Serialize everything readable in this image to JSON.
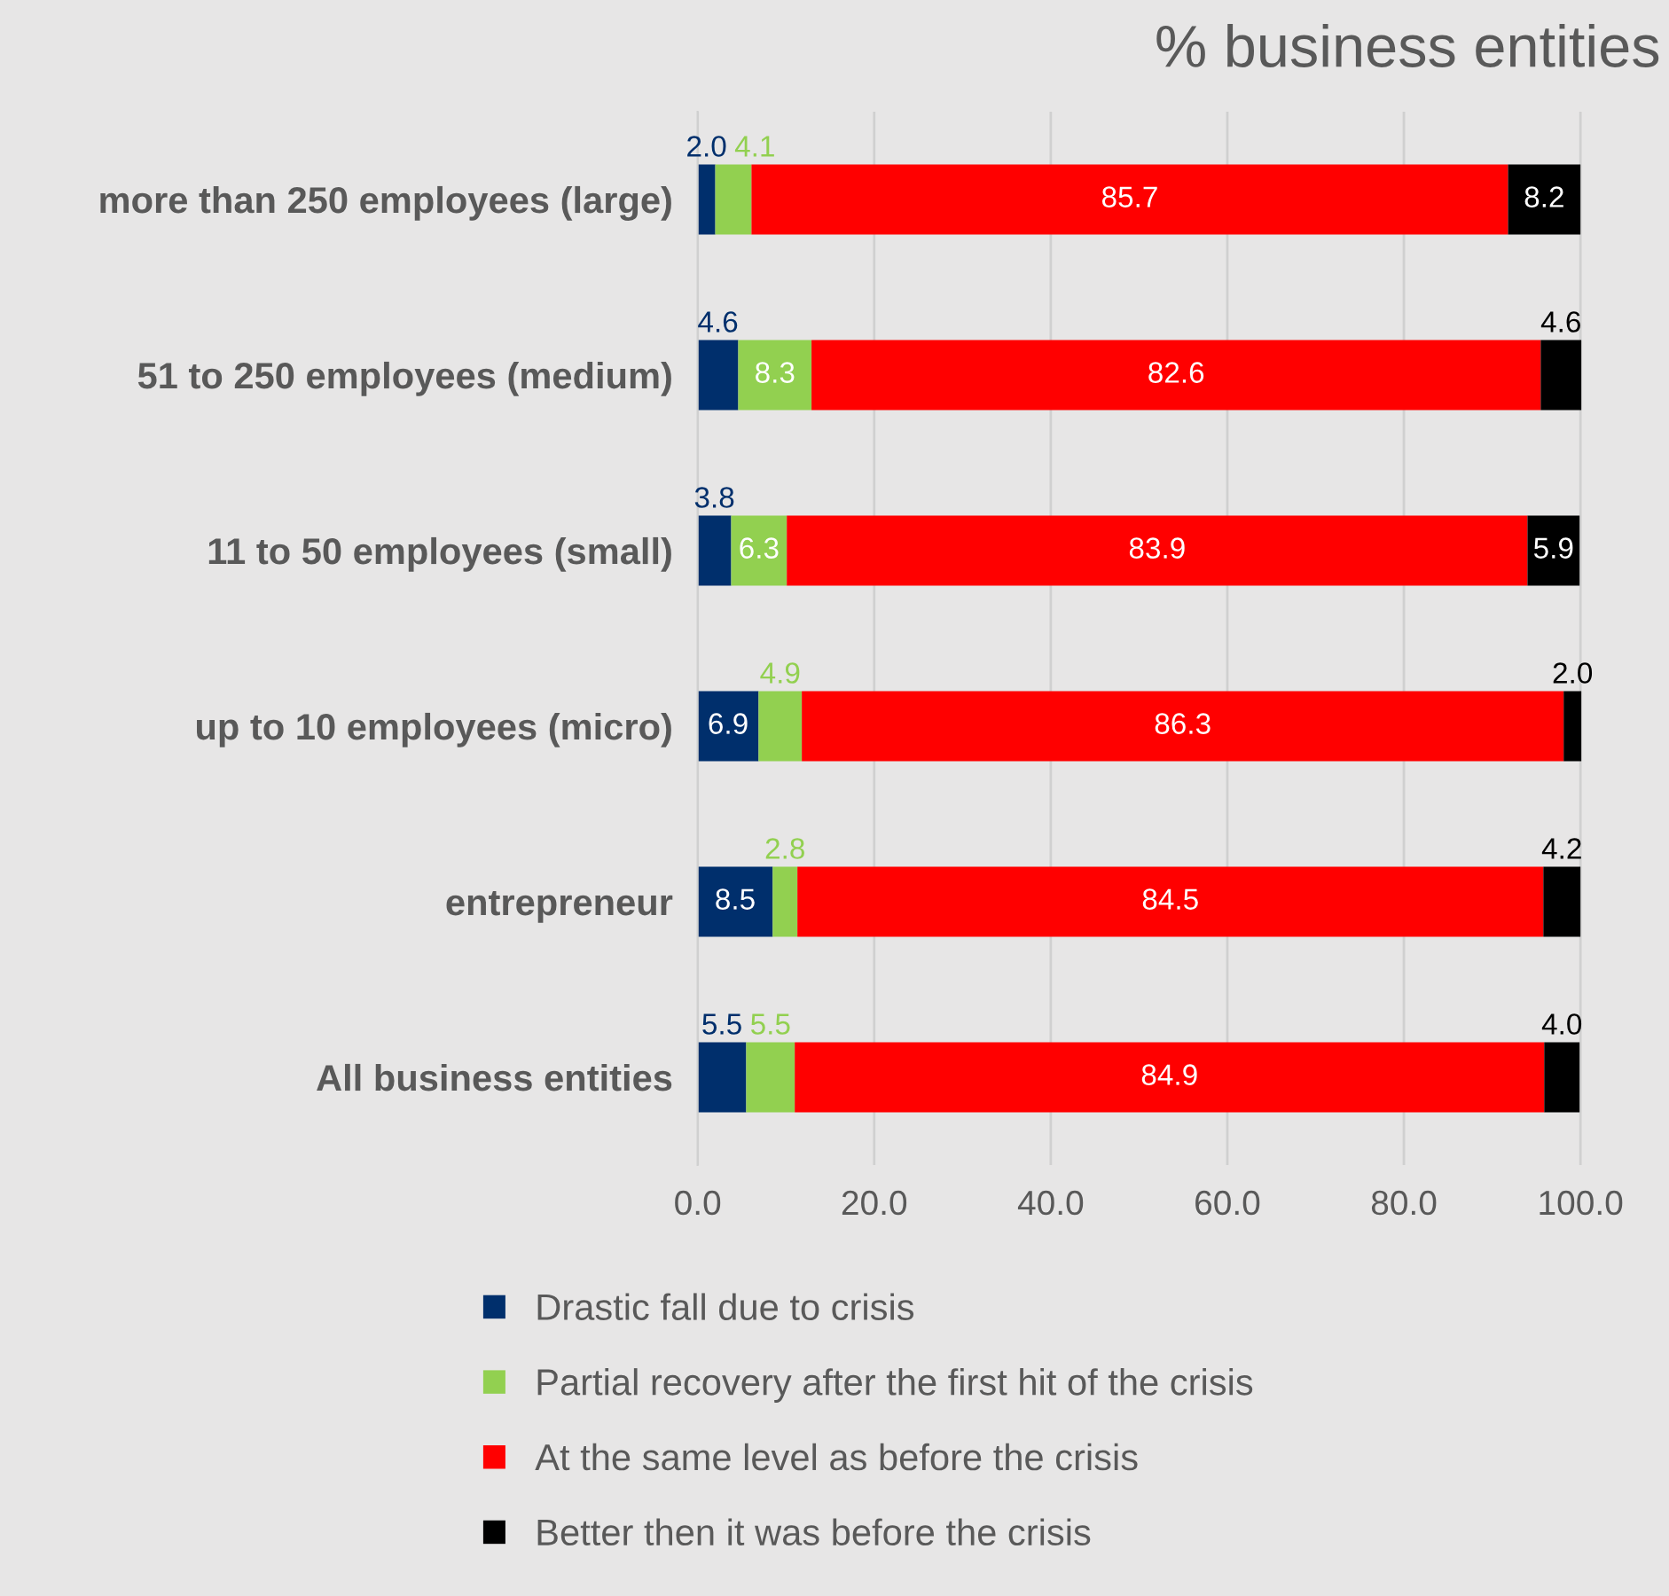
{
  "chart_data": {
    "type": "bar",
    "orientation": "horizontal",
    "stacked": true,
    "title": "% business entities",
    "categories": [
      "more than 250 employees (large)",
      "51 to 250 employees (medium)",
      "11 to 50 employees (small)",
      "up to 10 employees (micro)",
      "entrepreneur",
      "All business entities"
    ],
    "series": [
      {
        "name": "Drastic fall due to crisis",
        "color": "#002f6c",
        "values": [
          2.0,
          4.6,
          3.8,
          6.9,
          8.5,
          5.5
        ],
        "value_labels": [
          "2.0",
          "4.6",
          "3.8",
          "6.9",
          "8.5",
          "5.5"
        ]
      },
      {
        "name": "Partial recovery after the first hit of the crisis",
        "color": "#92d050",
        "values": [
          4.1,
          8.3,
          6.3,
          4.9,
          2.8,
          5.5
        ],
        "value_labels": [
          "4.1",
          "8.3",
          "6.3",
          "4.9",
          "2.8",
          "5.5"
        ]
      },
      {
        "name": "At the same level as before the crisis",
        "color": "#ff0000",
        "values": [
          85.7,
          82.6,
          83.9,
          86.3,
          84.5,
          84.9
        ],
        "value_labels": [
          "85.7",
          "82.6",
          "83.9",
          "86.3",
          "84.5",
          "84.9"
        ]
      },
      {
        "name": "Better then it was before the crisis",
        "color": "#000000",
        "values": [
          8.2,
          4.6,
          5.9,
          2.0,
          4.2,
          4.0
        ],
        "value_labels": [
          "8.2",
          "4.6",
          "5.9",
          "2.0",
          "4.2",
          "4.0"
        ]
      }
    ],
    "xlim": [
      0,
      100.2
    ],
    "xticks": [
      {
        "value": 0,
        "label": "0.0"
      },
      {
        "value": 20,
        "label": "20.0"
      },
      {
        "value": 40,
        "label": "40.0"
      },
      {
        "value": 60,
        "label": "60.0"
      },
      {
        "value": 80,
        "label": "80.0"
      },
      {
        "value": 100,
        "label": "100.0"
      }
    ],
    "data_labels": true,
    "grid": "x",
    "legend": "bottom"
  }
}
